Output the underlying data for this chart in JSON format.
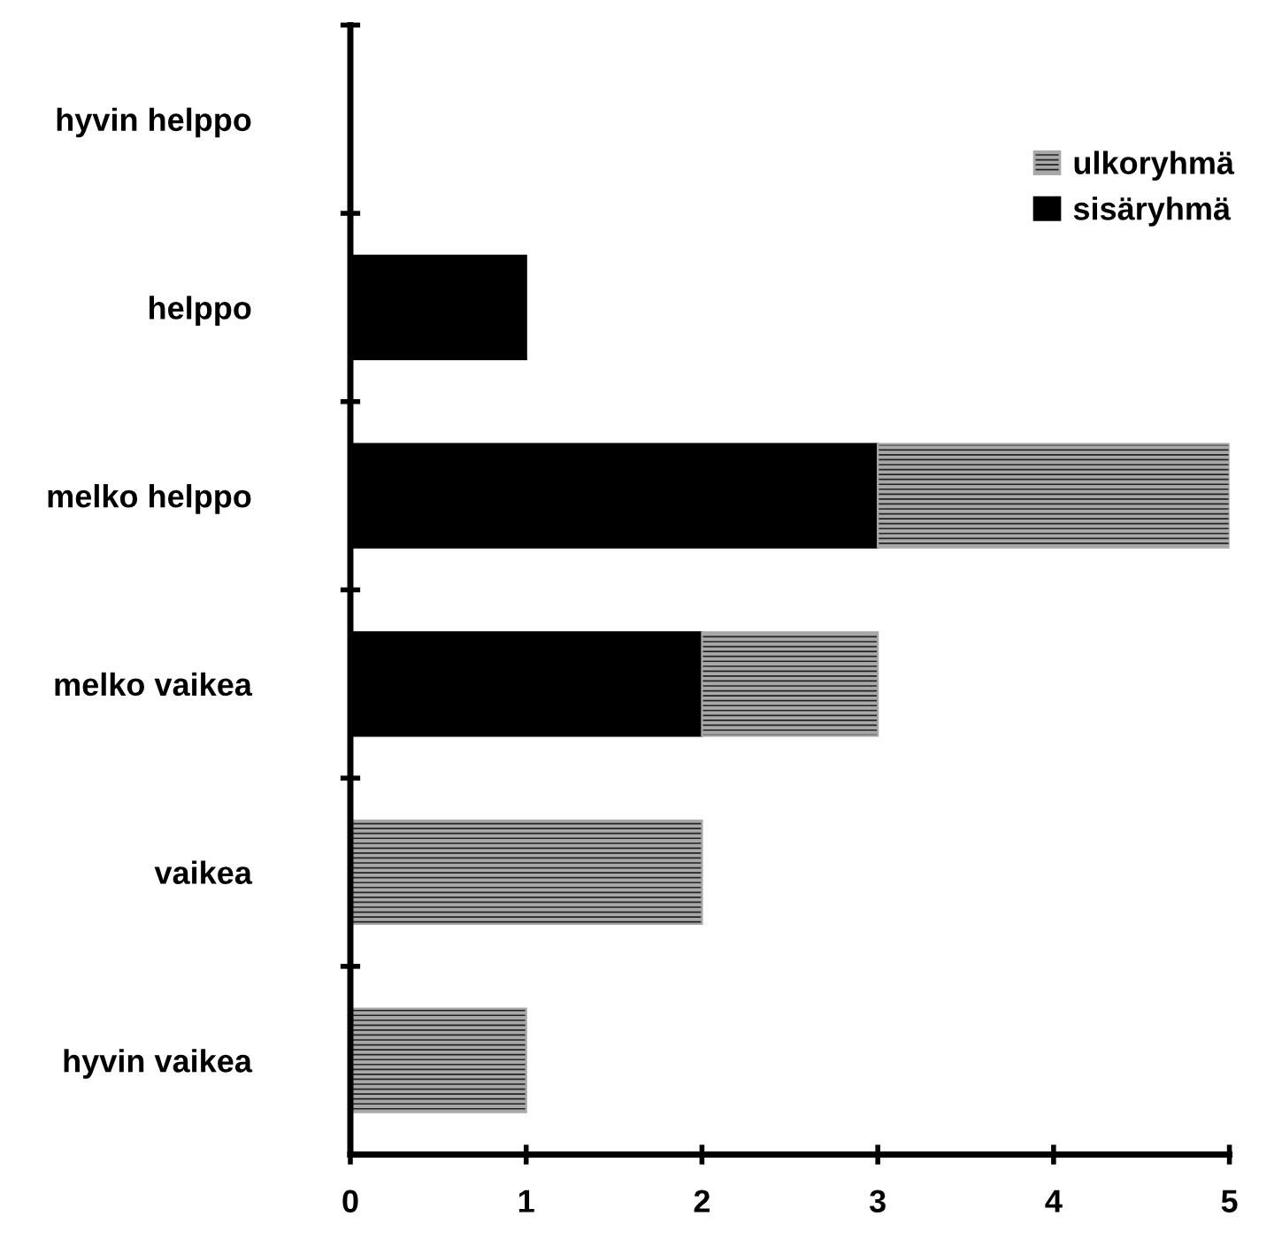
{
  "chart_data": {
    "type": "bar",
    "orientation": "horizontal",
    "stacked": true,
    "categories": [
      "hyvin helppo",
      "helppo",
      "melko helppo",
      "melko vaikea",
      "vaikea",
      "hyvin vaikea"
    ],
    "series": [
      {
        "name": "sisäryhmä",
        "color": "#000000",
        "values": [
          0,
          1,
          3,
          2,
          0,
          0
        ]
      },
      {
        "name": "ulkoryhmä",
        "color": "#a8a8a8",
        "values": [
          0,
          0,
          2,
          1,
          2,
          1
        ]
      }
    ],
    "xlim": [
      0,
      5
    ],
    "xticks": [
      0,
      1,
      2,
      3,
      4,
      5
    ],
    "grid": false,
    "legend": "top right"
  }
}
